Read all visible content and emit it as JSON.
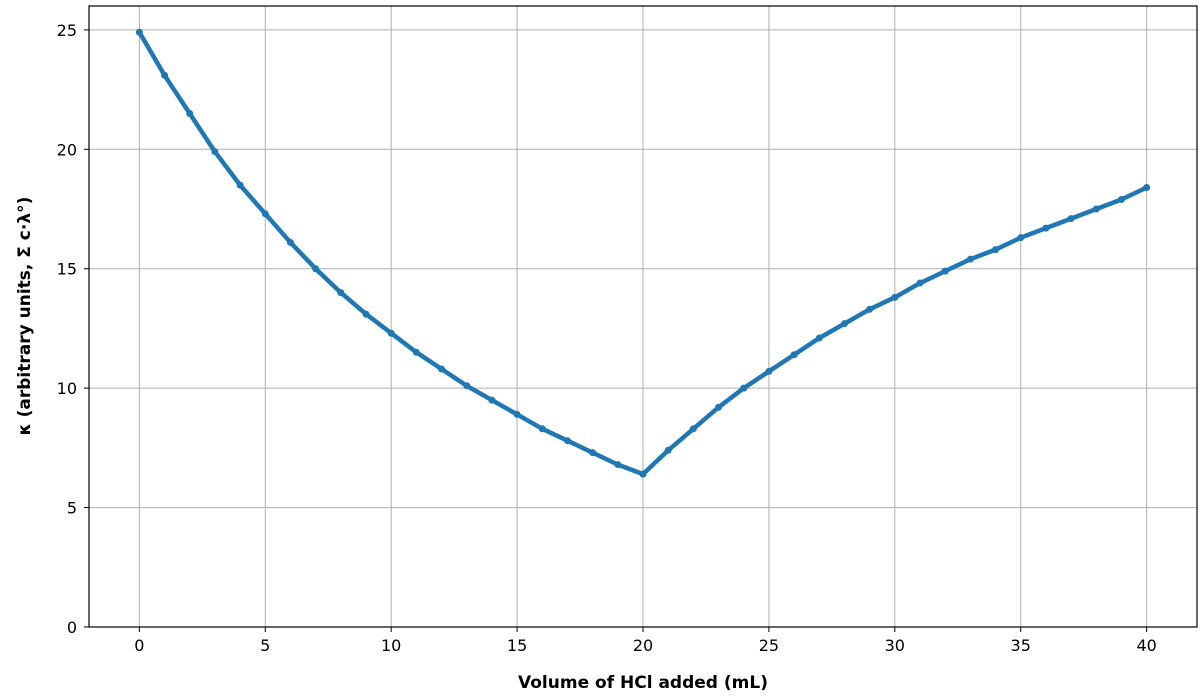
{
  "chart_data": {
    "type": "line",
    "title": "",
    "xlabel": "Volume of HCl added (mL)",
    "ylabel": "κ (arbitrary units, Σ c·λ°)",
    "xlim": [
      -2,
      42
    ],
    "ylim": [
      0,
      26
    ],
    "xticks": [
      0,
      5,
      10,
      15,
      20,
      25,
      30,
      35,
      40
    ],
    "yticks": [
      0,
      5,
      10,
      15,
      20,
      25
    ],
    "grid": true,
    "marker": "circle",
    "line_color": "#1f77b4",
    "series": [
      {
        "x": [
          0,
          1,
          2,
          3,
          4,
          5,
          6,
          7,
          8,
          9,
          10,
          11,
          12,
          13,
          14,
          15,
          16,
          17,
          18,
          19,
          20,
          21,
          22,
          23,
          24,
          25,
          26,
          27,
          28,
          29,
          30,
          31,
          32,
          33,
          34,
          35,
          36,
          37,
          38,
          39,
          40
        ],
        "values": [
          24.9,
          23.1,
          21.5,
          19.9,
          18.5,
          17.3,
          16.1,
          15.0,
          14.0,
          13.1,
          12.3,
          11.5,
          10.8,
          10.1,
          9.5,
          8.9,
          8.3,
          7.8,
          7.3,
          6.8,
          6.4,
          7.4,
          8.3,
          9.2,
          10.0,
          10.7,
          11.4,
          12.1,
          12.7,
          13.3,
          13.8,
          14.4,
          14.9,
          15.4,
          15.8,
          16.3,
          16.7,
          17.1,
          17.5,
          17.9,
          18.4
        ]
      }
    ]
  }
}
